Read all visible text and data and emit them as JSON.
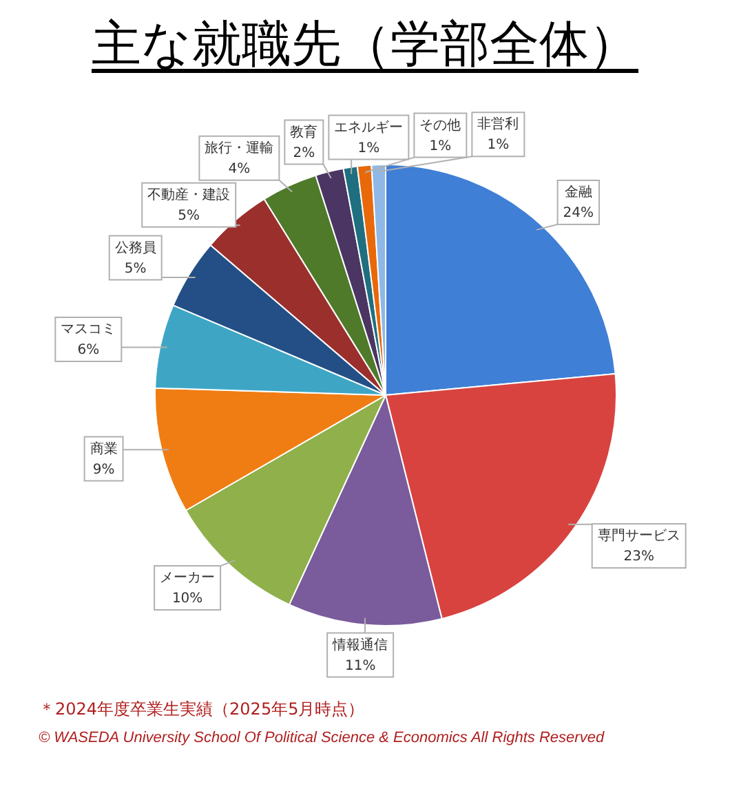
{
  "chart_data": {
    "type": "pie",
    "title": "主な就職先（学部全体）",
    "categories": [
      "金融",
      "専門サービス",
      "情報通信",
      "メーカー",
      "商業",
      "マスコミ",
      "公務員",
      "不動産・建設",
      "旅行・運輸",
      "教育",
      "エネルギー",
      "その他",
      "非営利"
    ],
    "values": [
      24,
      23,
      11,
      10,
      9,
      6,
      5,
      5,
      4,
      2,
      1,
      1,
      1
    ],
    "value_labels": [
      "24%",
      "23%",
      "11%",
      "10%",
      "9%",
      "6%",
      "5%",
      "5%",
      "4%",
      "2%",
      "1%",
      "1%",
      "1%"
    ],
    "colors": [
      "#3f7fd6",
      "#d84340",
      "#7a5b9c",
      "#8fb04a",
      "#f07d14",
      "#3ea6c4",
      "#234f86",
      "#9a2f2c",
      "#4f7a2a",
      "#4a3563",
      "#1f6f80",
      "#e8680a",
      "#8fb8e6"
    ],
    "annotations": [
      "＊2024年度卒業生実績（2025年5月時点）",
      "© WASEDA University School Of Political Science & Economics All Rights Reserved"
    ]
  }
}
